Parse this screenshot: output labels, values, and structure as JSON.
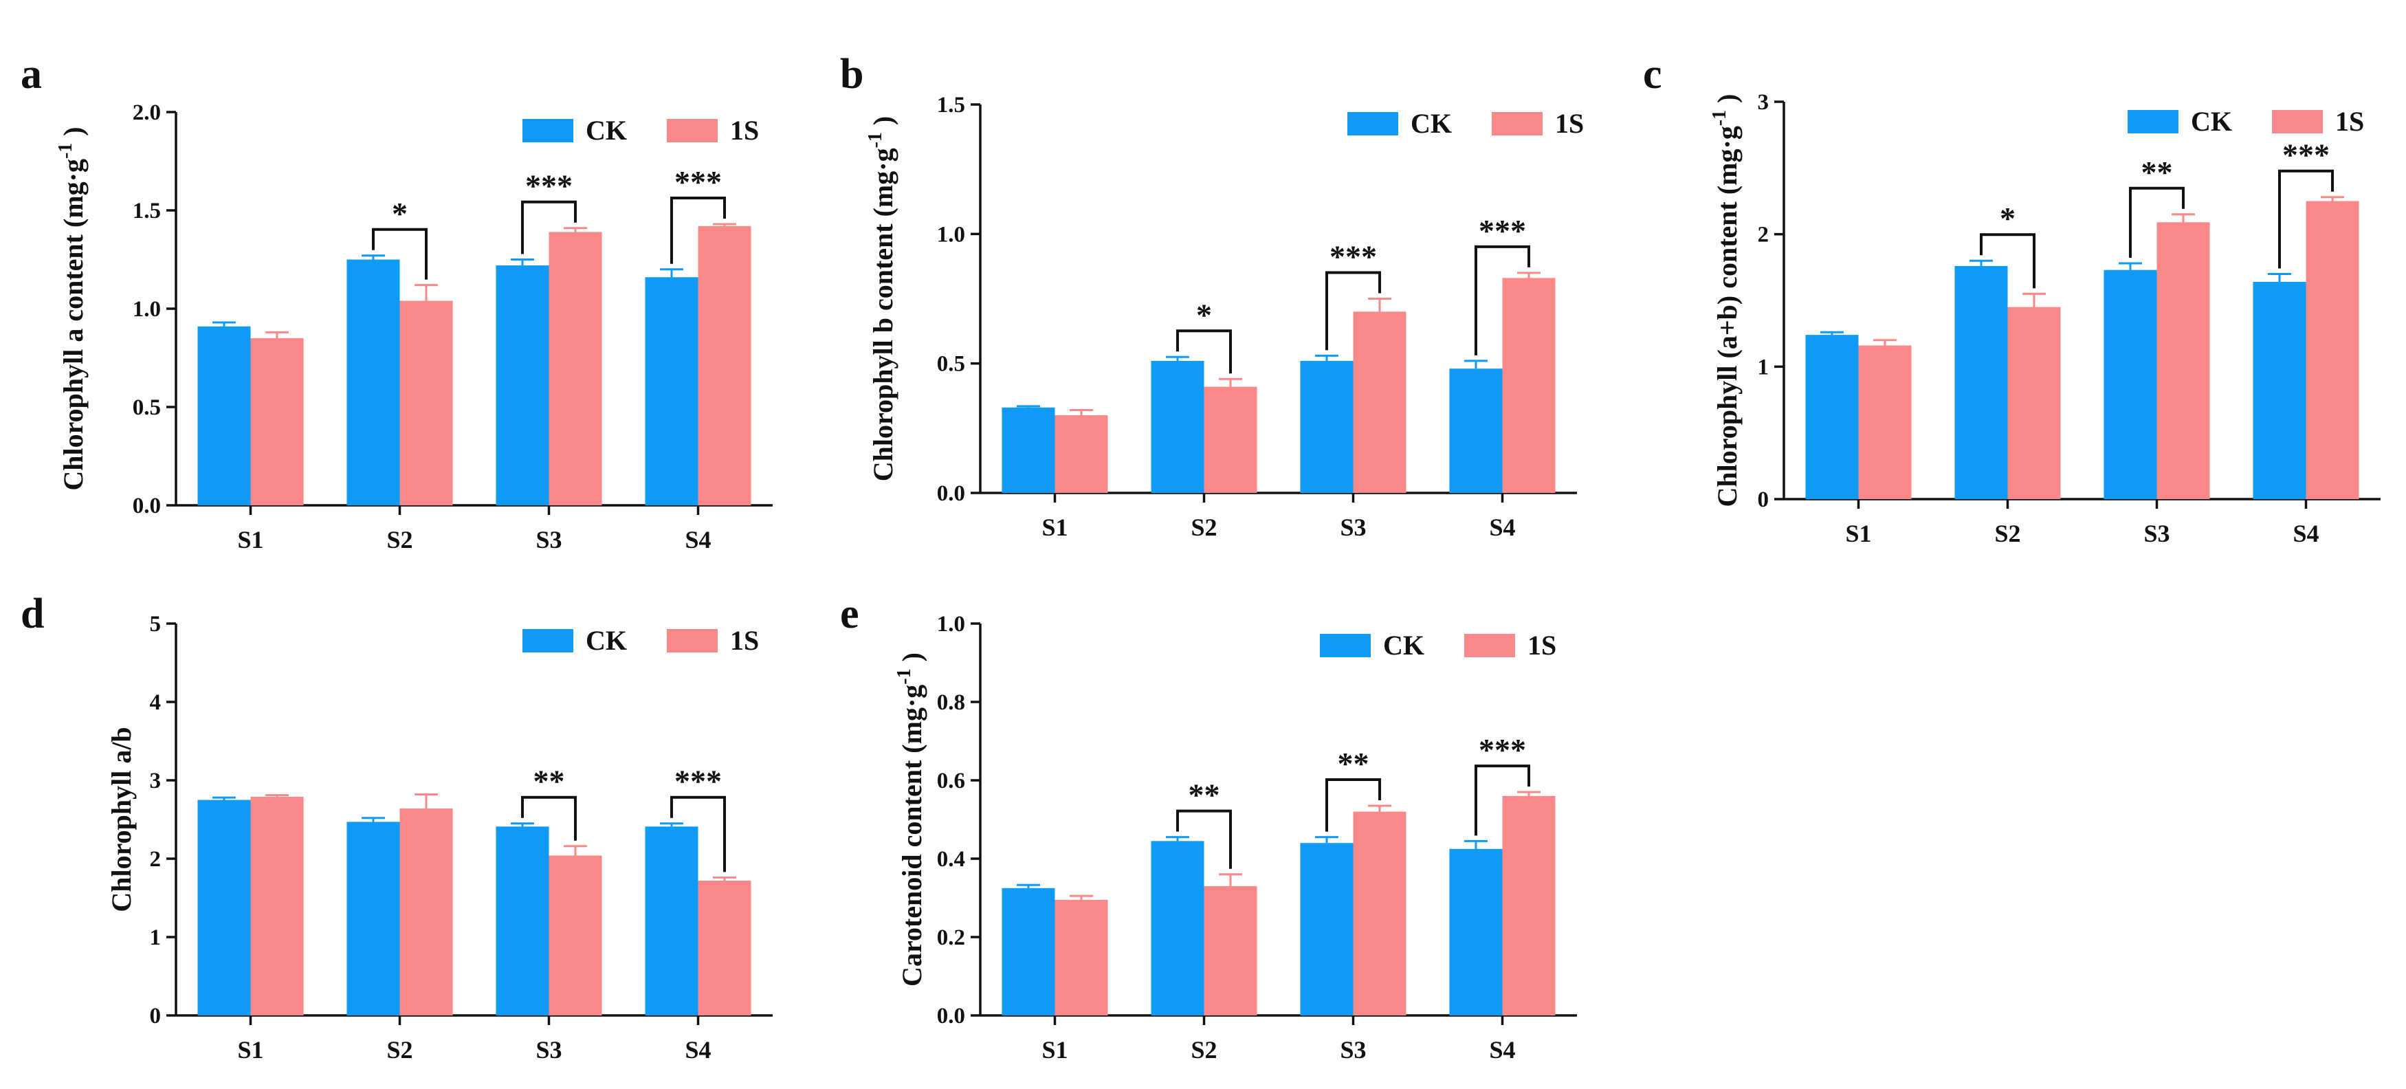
{
  "chart_data": [
    {
      "panel": "a",
      "type": "bar",
      "ylabel": "Chlorophyll a content (mg·g",
      "ylabel_sup": "-1",
      "ylabel_tail": ")",
      "categories": [
        "S1",
        "S2",
        "S3",
        "S4"
      ],
      "ylim": [
        0,
        2.0
      ],
      "yticks": [
        "0.0",
        "0.5",
        "1.0",
        "1.5",
        "2.0"
      ],
      "ytick_values": [
        0,
        0.5,
        1.0,
        1.5,
        2.0
      ],
      "legend": [
        "CK",
        "1S"
      ],
      "series": [
        {
          "name": "CK",
          "color": "#0F9AF6",
          "values": [
            0.91,
            1.25,
            1.22,
            1.16
          ],
          "errors": [
            0.02,
            0.02,
            0.03,
            0.04
          ]
        },
        {
          "name": "1S",
          "color": "#F98888",
          "values": [
            0.85,
            1.04,
            1.39,
            1.42
          ],
          "errors": [
            0.03,
            0.08,
            0.02,
            0.01
          ]
        }
      ],
      "significance": [
        {
          "category": "S2",
          "label": "*"
        },
        {
          "category": "S3",
          "label": "***"
        },
        {
          "category": "S4",
          "label": "***"
        }
      ]
    },
    {
      "panel": "b",
      "type": "bar",
      "ylabel": "Chlorophyll b content (mg·g",
      "ylabel_sup": "-1",
      "ylabel_tail": ")",
      "categories": [
        "S1",
        "S2",
        "S3",
        "S4"
      ],
      "ylim": [
        0,
        1.5
      ],
      "yticks": [
        "0.0",
        "0.5",
        "1.0",
        "1.5"
      ],
      "ytick_values": [
        0,
        0.5,
        1.0,
        1.5
      ],
      "legend": [
        "CK",
        "1S"
      ],
      "series": [
        {
          "name": "CK",
          "color": "#0F9AF6",
          "values": [
            0.33,
            0.51,
            0.51,
            0.48
          ],
          "errors": [
            0.005,
            0.015,
            0.02,
            0.03
          ]
        },
        {
          "name": "1S",
          "color": "#F98888",
          "values": [
            0.3,
            0.41,
            0.7,
            0.83
          ],
          "errors": [
            0.02,
            0.03,
            0.05,
            0.02
          ]
        }
      ],
      "significance": [
        {
          "category": "S2",
          "label": "*"
        },
        {
          "category": "S3",
          "label": "***"
        },
        {
          "category": "S4",
          "label": "***"
        }
      ]
    },
    {
      "panel": "c",
      "type": "bar",
      "ylabel": "Chlorophyll (a+b) content (mg·g",
      "ylabel_sup": "-1",
      "ylabel_tail": ")",
      "categories": [
        "S1",
        "S2",
        "S3",
        "S4"
      ],
      "ylim": [
        0,
        3
      ],
      "yticks": [
        "0",
        "1",
        "2",
        "3"
      ],
      "ytick_values": [
        0,
        1,
        2,
        3
      ],
      "legend": [
        "CK",
        "1S"
      ],
      "series": [
        {
          "name": "CK",
          "color": "#0F9AF6",
          "values": [
            1.24,
            1.76,
            1.73,
            1.64
          ],
          "errors": [
            0.02,
            0.04,
            0.05,
            0.06
          ]
        },
        {
          "name": "1S",
          "color": "#F98888",
          "values": [
            1.16,
            1.45,
            2.09,
            2.25
          ],
          "errors": [
            0.04,
            0.1,
            0.06,
            0.03
          ]
        }
      ],
      "significance": [
        {
          "category": "S2",
          "label": "*"
        },
        {
          "category": "S3",
          "label": "**"
        },
        {
          "category": "S4",
          "label": "***"
        }
      ]
    },
    {
      "panel": "d",
      "type": "bar",
      "ylabel": "Chlorophyll a/b",
      "ylabel_sup": "",
      "ylabel_tail": "",
      "categories": [
        "S1",
        "S2",
        "S3",
        "S4"
      ],
      "ylim": [
        0,
        5
      ],
      "yticks": [
        "0",
        "1",
        "2",
        "3",
        "4",
        "5"
      ],
      "ytick_values": [
        0,
        1,
        2,
        3,
        4,
        5
      ],
      "legend": [
        "CK",
        "1S"
      ],
      "series": [
        {
          "name": "CK",
          "color": "#0F9AF6",
          "values": [
            2.75,
            2.47,
            2.41,
            2.41
          ],
          "errors": [
            0.03,
            0.05,
            0.04,
            0.04
          ]
        },
        {
          "name": "1S",
          "color": "#F98888",
          "values": [
            2.79,
            2.64,
            2.04,
            1.72
          ],
          "errors": [
            0.02,
            0.18,
            0.12,
            0.04
          ]
        }
      ],
      "significance": [
        {
          "category": "S3",
          "label": "**"
        },
        {
          "category": "S4",
          "label": "***"
        }
      ]
    },
    {
      "panel": "e",
      "type": "bar",
      "ylabel": "Carotenoid content (mg·g",
      "ylabel_sup": "-1",
      "ylabel_tail": ")",
      "categories": [
        "S1",
        "S2",
        "S3",
        "S4"
      ],
      "ylim": [
        0,
        1.0
      ],
      "yticks": [
        "0.0",
        "0.2",
        "0.4",
        "0.6",
        "0.8",
        "1.0"
      ],
      "ytick_values": [
        0,
        0.2,
        0.4,
        0.6,
        0.8,
        1.0
      ],
      "legend": [
        "CK",
        "1S"
      ],
      "series": [
        {
          "name": "CK",
          "color": "#0F9AF6",
          "values": [
            0.325,
            0.445,
            0.44,
            0.425
          ],
          "errors": [
            0.008,
            0.01,
            0.015,
            0.02
          ]
        },
        {
          "name": "1S",
          "color": "#F98888",
          "values": [
            0.295,
            0.33,
            0.52,
            0.56
          ],
          "errors": [
            0.01,
            0.03,
            0.015,
            0.01
          ]
        }
      ],
      "significance": [
        {
          "category": "S2",
          "label": "**"
        },
        {
          "category": "S3",
          "label": "**"
        },
        {
          "category": "S4",
          "label": "***"
        }
      ]
    }
  ]
}
